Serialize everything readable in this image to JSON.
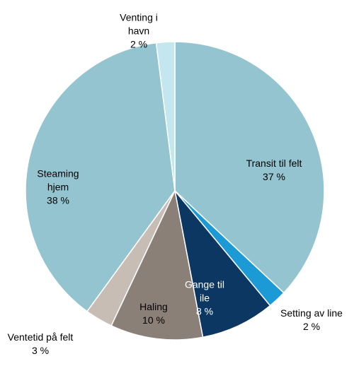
{
  "chart_data": {
    "type": "pie",
    "categories": [
      "Transit til felt",
      "Setting av line",
      "Gange til ile",
      "Haling",
      "Ventetid på felt",
      "Steaming hjem",
      "Venting i havn"
    ],
    "values": [
      37,
      2,
      8,
      10,
      3,
      38,
      2
    ],
    "value_labels": [
      "37 %",
      "2 %",
      "8 %",
      "10 %",
      "3 %",
      "38 %",
      "2 %"
    ],
    "colors": [
      "#93c4cf",
      "#1b9ad6",
      "#0c3763",
      "#8b8078",
      "#c7bdb4",
      "#93c4cf",
      "#c4e7ef"
    ]
  }
}
